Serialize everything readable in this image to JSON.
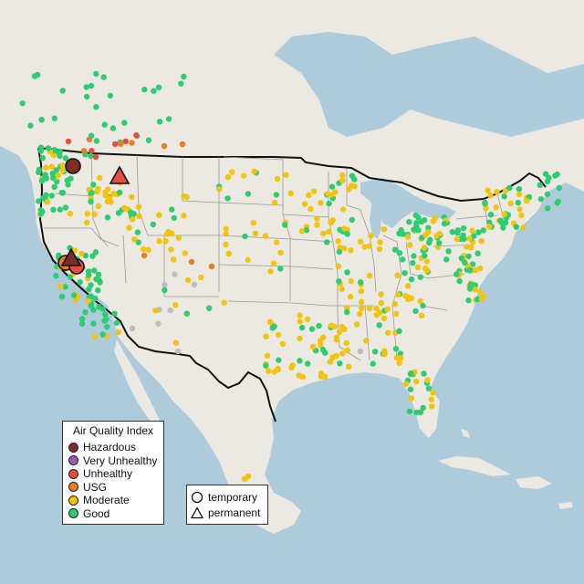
{
  "legend": {
    "title": "Air Quality Index",
    "categories": [
      {
        "label": "Hazardous",
        "color": "#7b2d26"
      },
      {
        "label": "Very Unhealthy",
        "color": "#9b59b6"
      },
      {
        "label": "Unhealthy",
        "color": "#e74c3c"
      },
      {
        "label": "USG",
        "color": "#e67e22"
      },
      {
        "label": "Moderate",
        "color": "#f1c40f"
      },
      {
        "label": "Good",
        "color": "#2ecc71"
      }
    ]
  },
  "shape_legend": {
    "temporary": "temporary",
    "permanent": "permanent"
  },
  "colors": {
    "water": "#aecbdc",
    "land": "#ece9e3",
    "border": "#111111",
    "state_line": "#9a9a9a",
    "unavailable": "#bdbdbd"
  }
}
